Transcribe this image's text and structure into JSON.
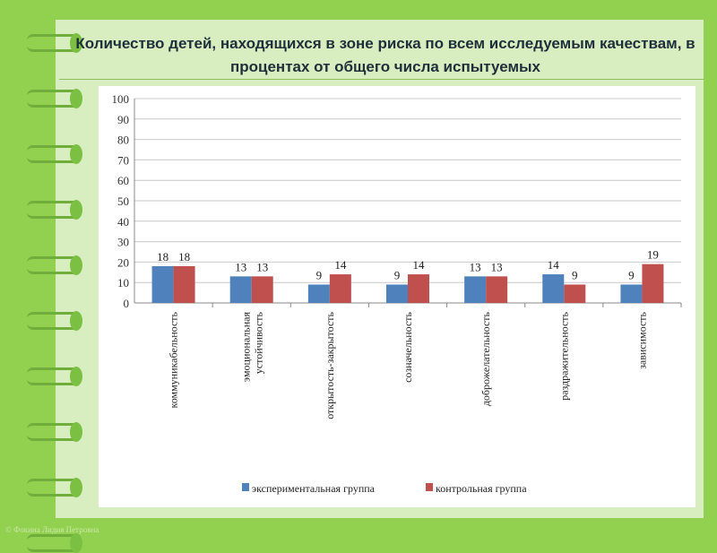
{
  "footer": "© Фокина Лидия Петровна",
  "chart_data": {
    "type": "bar",
    "title": "Количество детей, находящихся в зоне риска по всем исследуемым качествам, в процентах от общего числа испытуемых",
    "categories": [
      "коммуникабельность",
      "эмоциональная устойчивость",
      "открытость-закрытость",
      "созначельность",
      "доброжелательность",
      "раздражительность",
      "зависимость"
    ],
    "series": [
      {
        "name": "экспериментальная группа",
        "color": "#4f81bd",
        "values": [
          18,
          13,
          9,
          9,
          13,
          14,
          9
        ]
      },
      {
        "name": "контрольная группа",
        "color": "#c0504d",
        "values": [
          18,
          13,
          14,
          14,
          13,
          9,
          19
        ]
      }
    ],
    "ylim": [
      0,
      100
    ],
    "yticks": [
      0,
      10,
      20,
      30,
      40,
      50,
      60,
      70,
      80,
      90,
      100
    ],
    "grid": true,
    "legend": "bottom"
  }
}
